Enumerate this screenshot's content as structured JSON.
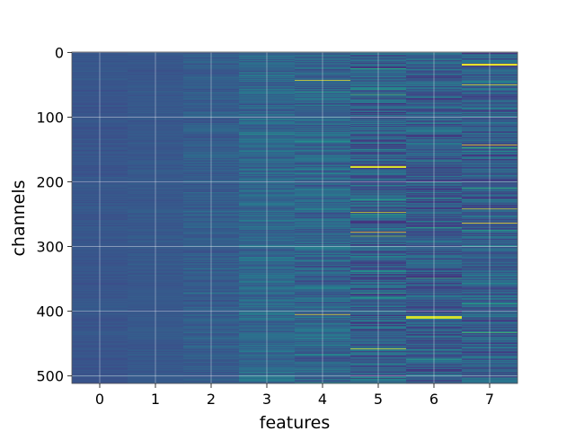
{
  "chart_data": {
    "type": "heatmap",
    "colormap": "viridis",
    "xlabel": "features",
    "ylabel": "channels",
    "x_ticks": [
      0,
      1,
      2,
      3,
      4,
      5,
      6,
      7
    ],
    "y_ticks": [
      0,
      100,
      200,
      300,
      400,
      500
    ],
    "columns": 8,
    "rows": 512,
    "grid": true,
    "column_mean_intensity": [
      0.27,
      0.28,
      0.3,
      0.34,
      0.33,
      0.3,
      0.29,
      0.3
    ],
    "column_variability": [
      0.03,
      0.03,
      0.06,
      0.1,
      0.13,
      0.17,
      0.15,
      0.15
    ],
    "bright_rows": {
      "4": [
        43,
        405
      ],
      "5": [
        176,
        177,
        178,
        247,
        278,
        458
      ],
      "6": [
        408,
        409,
        410,
        411
      ],
      "7": [
        18,
        19,
        20,
        50,
        143,
        242,
        264
      ]
    }
  }
}
